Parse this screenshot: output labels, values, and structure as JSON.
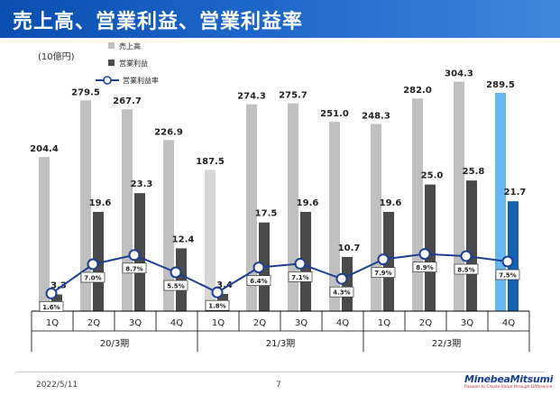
{
  "slide": {
    "title": "売上高、営業利益、営業利益率",
    "unit": "(10億円)",
    "date": "2022/5/11",
    "page": "7",
    "logo_name": "MinebeaMitsumi",
    "logo_tagline": "Passion to Create Value through Difference"
  },
  "colors": {
    "title_bg": "#1d66c9",
    "sales_bar": "#c0c0c0",
    "sales_bar_light": "#d6d6d6",
    "sales_bar_highlight": "#66b7f2",
    "profit_bar": "#4a4a4a",
    "profit_bar_highlight": "#1560b0",
    "margin_line": "#1f3f94"
  },
  "chart_data": {
    "type": "bar",
    "categories": [
      "1Q",
      "2Q",
      "3Q",
      "4Q",
      "1Q",
      "2Q",
      "3Q",
      "4Q",
      "1Q",
      "2Q",
      "3Q",
      "4Q"
    ],
    "groups": [
      {
        "label": "20/3期",
        "span": [
          0,
          3
        ]
      },
      {
        "label": "21/3期",
        "span": [
          4,
          7
        ]
      },
      {
        "label": "22/3期",
        "span": [
          8,
          11
        ]
      }
    ],
    "series": [
      {
        "name": "売上高",
        "kind": "bar",
        "values": [
          204.4,
          279.5,
          267.7,
          226.9,
          187.5,
          274.3,
          275.7,
          251.0,
          248.3,
          282.0,
          304.3,
          289.5
        ],
        "labels": [
          "204.4",
          "279.5",
          "267.7",
          "226.9",
          "187.5",
          "274.3",
          "275.7",
          "251.0",
          "248.3",
          "282.0",
          "304.3",
          "289.5"
        ]
      },
      {
        "name": "営業利益",
        "kind": "bar",
        "values": [
          3.3,
          19.6,
          23.3,
          12.4,
          3.4,
          17.5,
          19.6,
          10.7,
          19.6,
          25.0,
          25.8,
          21.7
        ],
        "labels": [
          "3.3",
          "19.6",
          "23.3",
          "12.4",
          "3.4",
          "17.5",
          "19.6",
          "10.7",
          "19.6",
          "25.0",
          "25.8",
          "21.7"
        ]
      },
      {
        "name": "営業利益率",
        "kind": "line",
        "values": [
          1.6,
          7.0,
          8.7,
          5.5,
          1.8,
          6.4,
          7.1,
          4.3,
          7.9,
          8.9,
          8.5,
          7.5
        ],
        "labels": [
          "1.6%",
          "7.0%",
          "8.7%",
          "5.5%",
          "1.8%",
          "6.4%",
          "7.1%",
          "4.3%",
          "7.9%",
          "8.9%",
          "8.5%",
          "7.5%"
        ]
      }
    ],
    "legend": "top-left",
    "grid": false
  }
}
